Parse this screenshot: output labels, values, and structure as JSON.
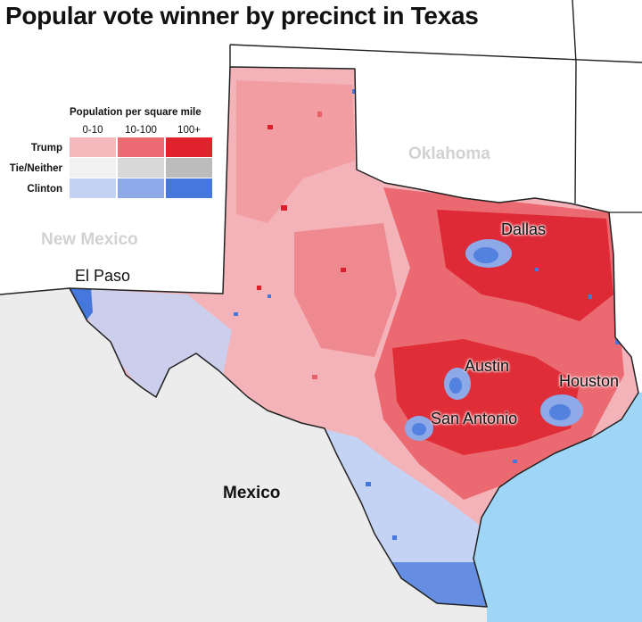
{
  "title": "Popular vote winner by precinct in Texas",
  "legend": {
    "title": "Population per square mile",
    "columns": [
      "0-10",
      "10-100",
      "100+"
    ],
    "rows": [
      {
        "label": "Trump",
        "colors": [
          "#f5b8bd",
          "#ec6a72",
          "#e0222d"
        ]
      },
      {
        "label": "Tie/Neither",
        "colors": [
          "#f1f1f1",
          "#d8d8d8",
          "#bcbcbc"
        ]
      },
      {
        "label": "Clinton",
        "colors": [
          "#c4d3f3",
          "#8ea9e8",
          "#4577dd"
        ]
      }
    ]
  },
  "map_labels": {
    "oklahoma": "Oklahoma",
    "new_mexico": "New Mexico",
    "mexico": "Mexico",
    "el_paso": "El Paso",
    "dallas": "Dallas",
    "austin": "Austin",
    "houston": "Houston",
    "san_antonio": "San Antonio"
  },
  "colors": {
    "land_other": "#ffffff",
    "mexico_land": "#ececec",
    "gulf_water": "#9fd6f8",
    "border": "#222222",
    "trump_low": "#f4b3b8",
    "trump_mid": "#ea6068",
    "trump_high": "#dc1f2b",
    "clinton_low": "#c4d3f3",
    "clinton_high": "#4577dd"
  }
}
